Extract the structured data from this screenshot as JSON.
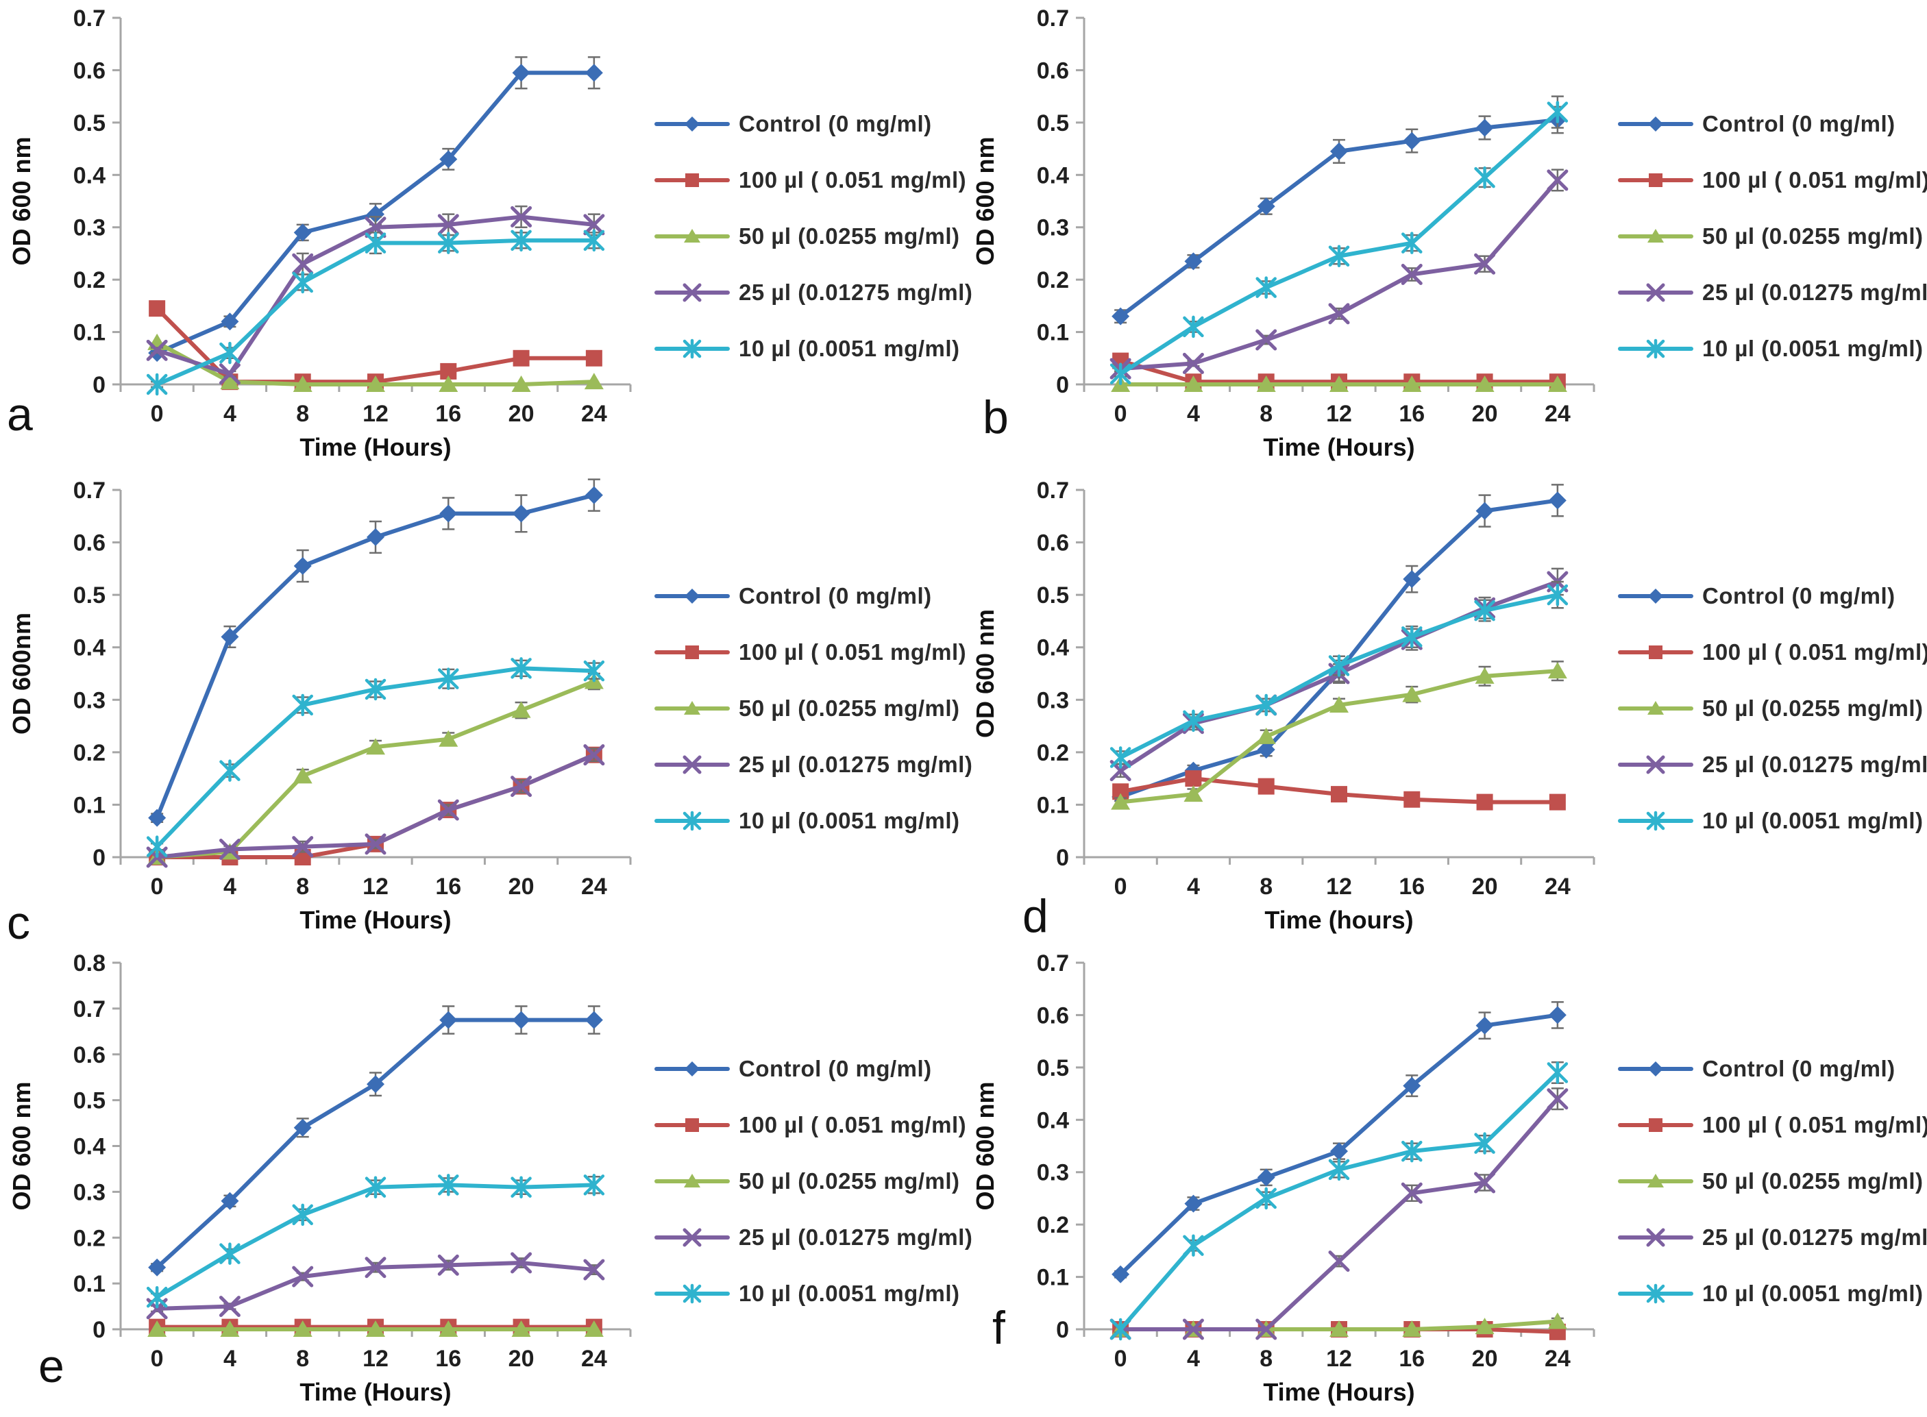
{
  "figure": {
    "background": "#ffffff",
    "axis_color": "#a6a6a6",
    "tick_text_color": "#1f1f1f",
    "error_bar_color": "#6e6e6e",
    "series_palette": {
      "control_blue": "#3b6db5",
      "dose100_red": "#c0504d",
      "dose50_green": "#9bbb59",
      "dose25_purple": "#7d60a0",
      "dose10_cyan": "#2fb3ce"
    }
  },
  "chart_data": [
    {
      "id": "a",
      "panel_label": "a",
      "type": "line",
      "xlabel": "Time (Hours)",
      "ylabel": "OD 600 nm",
      "x": [
        0,
        4,
        8,
        12,
        16,
        20,
        24
      ],
      "ylim": [
        0,
        0.7
      ],
      "ytick_step": 0.1,
      "grid": false,
      "legend_position": "right",
      "series": [
        {
          "name": "Control (0 mg/ml)",
          "marker": "diamond",
          "color": "#3b6db5",
          "values": [
            0.06,
            0.12,
            0.29,
            0.325,
            0.43,
            0.595,
            0.595
          ],
          "errors": [
            0.005,
            0.01,
            0.015,
            0.02,
            0.02,
            0.03,
            0.03
          ]
        },
        {
          "name": "100 µl ( 0.051 mg/ml)",
          "marker": "square",
          "color": "#c0504d",
          "values": [
            0.145,
            0.005,
            0.005,
            0.005,
            0.025,
            0.05,
            0.05
          ],
          "errors": [
            0.005,
            0.004,
            0.004,
            0.004,
            0.004,
            0.005,
            0.005
          ]
        },
        {
          "name": "50 µl (0.0255 mg/ml)",
          "marker": "triangle",
          "color": "#9bbb59",
          "values": [
            0.08,
            0.005,
            0,
            0,
            0,
            0,
            0.005
          ],
          "errors": [
            0.004,
            0.004,
            0.004,
            0.004,
            0.004,
            0.004,
            0.004
          ]
        },
        {
          "name": "25 µl (0.01275 mg/ml)",
          "marker": "x",
          "color": "#7d60a0",
          "values": [
            0.065,
            0.02,
            0.23,
            0.3,
            0.305,
            0.32,
            0.305
          ],
          "errors": [
            0.005,
            0.005,
            0.02,
            0.02,
            0.02,
            0.02,
            0.02
          ]
        },
        {
          "name": "10 µl (0.0051 mg/ml)",
          "marker": "star",
          "color": "#2fb3ce",
          "values": [
            0,
            0.06,
            0.195,
            0.27,
            0.27,
            0.275,
            0.275
          ],
          "errors": [
            0.005,
            0.01,
            0.015,
            0.02,
            0.015,
            0.015,
            0.015
          ]
        }
      ]
    },
    {
      "id": "b",
      "panel_label": "b",
      "type": "line",
      "xlabel": "Time  (Hours)",
      "ylabel": "OD 600 nm",
      "x": [
        0,
        4,
        8,
        12,
        16,
        20,
        24
      ],
      "ylim": [
        0,
        0.7
      ],
      "ytick_step": 0.1,
      "grid": false,
      "legend_position": "right",
      "series": [
        {
          "name": "Control (0 mg/ml)",
          "marker": "diamond",
          "color": "#3b6db5",
          "values": [
            0.13,
            0.235,
            0.34,
            0.445,
            0.465,
            0.49,
            0.505
          ],
          "errors": [
            0.012,
            0.012,
            0.015,
            0.022,
            0.022,
            0.022,
            0.025
          ]
        },
        {
          "name": "100 µl ( 0.051 mg/ml)",
          "marker": "square",
          "color": "#c0504d",
          "values": [
            0.045,
            0.005,
            0.005,
            0.005,
            0.005,
            0.005,
            0.005
          ],
          "errors": [
            0.005,
            0.004,
            0.004,
            0.004,
            0.004,
            0.004,
            0.004
          ]
        },
        {
          "name": "50 µl (0.0255 mg/ml)",
          "marker": "triangle",
          "color": "#9bbb59",
          "values": [
            0,
            0,
            0,
            0,
            0,
            0,
            0
          ],
          "errors": [
            0.004,
            0.004,
            0.004,
            0.004,
            0.004,
            0.004,
            0.004
          ]
        },
        {
          "name": "25 µl (0.01275 mg/ml)",
          "marker": "x",
          "color": "#7d60a0",
          "values": [
            0.03,
            0.04,
            0.085,
            0.135,
            0.21,
            0.23,
            0.39
          ],
          "errors": [
            0.005,
            0.005,
            0.008,
            0.01,
            0.012,
            0.015,
            0.02
          ]
        },
        {
          "name": "10 µl (0.0051 mg/ml)",
          "marker": "star",
          "color": "#2fb3ce",
          "values": [
            0.02,
            0.11,
            0.185,
            0.245,
            0.27,
            0.395,
            0.52
          ],
          "errors": [
            0.005,
            0.01,
            0.012,
            0.015,
            0.015,
            0.018,
            0.03
          ]
        }
      ]
    },
    {
      "id": "c",
      "panel_label": "c",
      "type": "line",
      "xlabel": "Time (Hours)",
      "ylabel": "OD 600nm",
      "x": [
        0,
        4,
        8,
        12,
        16,
        20,
        24
      ],
      "ylim": [
        0,
        0.7
      ],
      "ytick_step": 0.1,
      "grid": false,
      "legend_position": "right",
      "series": [
        {
          "name": "Control (0 mg/ml)",
          "marker": "diamond",
          "color": "#3b6db5",
          "values": [
            0.075,
            0.42,
            0.555,
            0.61,
            0.655,
            0.655,
            0.69
          ],
          "errors": [
            0.008,
            0.02,
            0.03,
            0.03,
            0.03,
            0.035,
            0.03
          ]
        },
        {
          "name": "100 µl ( 0.051 mg/ml)",
          "marker": "square",
          "color": "#c0504d",
          "values": [
            0,
            0,
            0,
            0.025,
            0.09,
            0.135,
            0.195
          ],
          "errors": [
            0.004,
            0.004,
            0.004,
            0.006,
            0.01,
            0.012,
            0.012
          ]
        },
        {
          "name": "50 µl (0.0255 mg/ml)",
          "marker": "triangle",
          "color": "#9bbb59",
          "values": [
            0,
            0.01,
            0.155,
            0.21,
            0.225,
            0.28,
            0.335
          ],
          "errors": [
            0.004,
            0.004,
            0.012,
            0.012,
            0.012,
            0.015,
            0.015
          ]
        },
        {
          "name": "25 µl (0.01275 mg/ml)",
          "marker": "x",
          "color": "#7d60a0",
          "values": [
            0,
            0.015,
            0.02,
            0.025,
            0.09,
            0.135,
            0.195
          ],
          "errors": [
            0.004,
            0.006,
            0.01,
            0.008,
            0.01,
            0.012,
            0.012
          ]
        },
        {
          "name": "10 µl (0.0051 mg/ml)",
          "marker": "star",
          "color": "#2fb3ce",
          "values": [
            0.02,
            0.165,
            0.29,
            0.32,
            0.34,
            0.36,
            0.355
          ],
          "errors": [
            0.006,
            0.012,
            0.015,
            0.015,
            0.018,
            0.015,
            0.015
          ]
        }
      ]
    },
    {
      "id": "d",
      "panel_label": "d",
      "type": "line",
      "xlabel": "Time (hours)",
      "ylabel": "OD 600 nm",
      "x": [
        0,
        4,
        8,
        12,
        16,
        20,
        24
      ],
      "ylim": [
        0,
        0.7
      ],
      "ytick_step": 0.1,
      "grid": false,
      "legend_position": "right",
      "series": [
        {
          "name": "Control (0 mg/ml)",
          "marker": "diamond",
          "color": "#3b6db5",
          "values": [
            0.115,
            0.165,
            0.205,
            0.355,
            0.53,
            0.66,
            0.68
          ],
          "errors": [
            0.008,
            0.01,
            0.012,
            0.02,
            0.025,
            0.03,
            0.03
          ]
        },
        {
          "name": "100 µl ( 0.051 mg/ml)",
          "marker": "square",
          "color": "#c0504d",
          "values": [
            0.125,
            0.15,
            0.135,
            0.12,
            0.11,
            0.105,
            0.105
          ],
          "errors": [
            0.01,
            0.012,
            0.01,
            0.008,
            0.008,
            0.008,
            0.008
          ]
        },
        {
          "name": "50 µl (0.0255 mg/ml)",
          "marker": "triangle",
          "color": "#9bbb59",
          "values": [
            0.105,
            0.12,
            0.23,
            0.29,
            0.31,
            0.345,
            0.355
          ],
          "errors": [
            0.008,
            0.01,
            0.012,
            0.012,
            0.015,
            0.018,
            0.018
          ]
        },
        {
          "name": "25 µl (0.01275 mg/ml)",
          "marker": "x",
          "color": "#7d60a0",
          "values": [
            0.165,
            0.255,
            0.29,
            0.35,
            0.415,
            0.475,
            0.525
          ],
          "errors": [
            0.012,
            0.012,
            0.012,
            0.018,
            0.02,
            0.02,
            0.025
          ]
        },
        {
          "name": "10 µl (0.0051 mg/ml)",
          "marker": "star",
          "color": "#2fb3ce",
          "values": [
            0.19,
            0.26,
            0.29,
            0.365,
            0.42,
            0.47,
            0.5
          ],
          "errors": [
            0.012,
            0.012,
            0.012,
            0.018,
            0.02,
            0.02,
            0.025
          ]
        }
      ]
    },
    {
      "id": "e",
      "panel_label": "e",
      "type": "line",
      "xlabel": "Time (Hours)",
      "ylabel": "OD 600 nm",
      "x": [
        0,
        4,
        8,
        12,
        16,
        20,
        24
      ],
      "ylim": [
        0,
        0.8
      ],
      "ytick_step": 0.1,
      "grid": false,
      "legend_position": "right",
      "series": [
        {
          "name": "Control (0 mg/ml)",
          "marker": "diamond",
          "color": "#3b6db5",
          "values": [
            0.135,
            0.28,
            0.44,
            0.535,
            0.675,
            0.675,
            0.675
          ],
          "errors": [
            0.008,
            0.012,
            0.02,
            0.025,
            0.03,
            0.03,
            0.03
          ]
        },
        {
          "name": "100 µl ( 0.051 mg/ml)",
          "marker": "square",
          "color": "#c0504d",
          "values": [
            0.005,
            0.005,
            0.005,
            0.005,
            0.005,
            0.005,
            0.005
          ],
          "errors": [
            0.004,
            0.004,
            0.004,
            0.004,
            0.004,
            0.004,
            0.004
          ]
        },
        {
          "name": "50 µl (0.0255 mg/ml)",
          "marker": "triangle",
          "color": "#9bbb59",
          "values": [
            0,
            0,
            0,
            0,
            0,
            0,
            0
          ],
          "errors": [
            0.004,
            0.004,
            0.004,
            0.004,
            0.004,
            0.004,
            0.004
          ]
        },
        {
          "name": "25 µl (0.01275 mg/ml)",
          "marker": "x",
          "color": "#7d60a0",
          "values": [
            0.045,
            0.05,
            0.115,
            0.135,
            0.14,
            0.145,
            0.13
          ],
          "errors": [
            0.006,
            0.006,
            0.008,
            0.01,
            0.01,
            0.01,
            0.01
          ]
        },
        {
          "name": "10 µl (0.0051 mg/ml)",
          "marker": "star",
          "color": "#2fb3ce",
          "values": [
            0.07,
            0.165,
            0.25,
            0.31,
            0.315,
            0.31,
            0.315
          ],
          "errors": [
            0.008,
            0.01,
            0.012,
            0.015,
            0.015,
            0.015,
            0.018
          ]
        }
      ]
    },
    {
      "id": "f",
      "panel_label": "f",
      "type": "line",
      "xlabel": "Time  (Hours)",
      "ylabel": "OD 600 nm",
      "x": [
        0,
        4,
        8,
        12,
        16,
        20,
        24
      ],
      "ylim": [
        0,
        0.7
      ],
      "ytick_step": 0.1,
      "grid": false,
      "legend_position": "right",
      "series": [
        {
          "name": "Control (0 mg/ml)",
          "marker": "diamond",
          "color": "#3b6db5",
          "values": [
            0.105,
            0.24,
            0.29,
            0.34,
            0.465,
            0.58,
            0.6
          ],
          "errors": [
            0.006,
            0.012,
            0.015,
            0.015,
            0.02,
            0.025,
            0.025
          ]
        },
        {
          "name": "100 µl ( 0.051 mg/ml)",
          "marker": "square",
          "color": "#c0504d",
          "values": [
            0,
            0,
            0,
            0,
            0,
            0,
            -0.005
          ],
          "errors": [
            0.004,
            0.004,
            0.004,
            0.004,
            0.004,
            0.004,
            0.004
          ]
        },
        {
          "name": "50 µl (0.0255 mg/ml)",
          "marker": "triangle",
          "color": "#9bbb59",
          "values": [
            0,
            0,
            0,
            0,
            0,
            0.005,
            0.015
          ],
          "errors": [
            0.004,
            0.004,
            0.004,
            0.004,
            0.004,
            0.004,
            0.006
          ]
        },
        {
          "name": "25 µl (0.01275 mg/ml)",
          "marker": "x",
          "color": "#7d60a0",
          "values": [
            0,
            0,
            0,
            0.13,
            0.26,
            0.28,
            0.44
          ],
          "errors": [
            0.004,
            0.004,
            0.004,
            0.01,
            0.015,
            0.015,
            0.02
          ]
        },
        {
          "name": "10 µl (0.0051 mg/ml)",
          "marker": "star",
          "color": "#2fb3ce",
          "values": [
            0,
            0.16,
            0.25,
            0.305,
            0.34,
            0.355,
            0.49
          ],
          "errors": [
            0.006,
            0.01,
            0.012,
            0.015,
            0.015,
            0.015,
            0.02
          ]
        }
      ]
    }
  ]
}
